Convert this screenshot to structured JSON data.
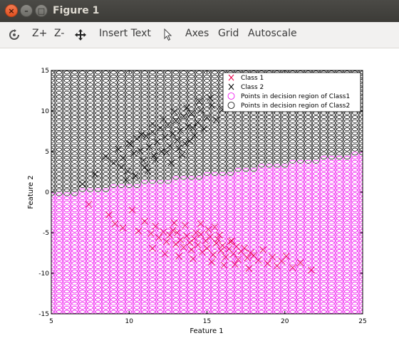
{
  "window": {
    "title": "Figure 1",
    "close_glyph": "×",
    "minimize_glyph": "–",
    "maximize_glyph": "□"
  },
  "toolbar": {
    "rotate_icon": "rotate-icon",
    "zoom_in_label": "Z+",
    "zoom_out_label": "Z-",
    "pan_icon": "pan-arrows-icon",
    "insert_text_label": "Insert Text",
    "select_icon": "pointer-icon",
    "axes_label": "Axes",
    "grid_label": "Grid",
    "autoscale_label": "Autoscale"
  },
  "chart_data": {
    "type": "scatter",
    "xlabel": "Feature 1",
    "ylabel": "Feature 2",
    "xlim": [
      5,
      25
    ],
    "ylim": [
      -15,
      15
    ],
    "xticks": [
      "5",
      "10",
      "15",
      "20",
      "25"
    ],
    "yticks": [
      "-15",
      "-10",
      "-5",
      "0",
      "5",
      "10",
      "15"
    ],
    "legend_position": "top-right",
    "grid": false,
    "decision_boundary": {
      "x": [
        5,
        25
      ],
      "y": [
        -0.5,
        4.7
      ]
    },
    "decision_grid_step": 0.5,
    "series": [
      {
        "name": "Class 1",
        "marker": "x",
        "color": "#e8004a",
        "x": [
          7.4,
          8.7,
          9.1,
          9.6,
          10.2,
          10.6,
          11.0,
          11.4,
          11.7,
          11.9,
          12.2,
          12.4,
          12.6,
          12.8,
          13.0,
          13.1,
          13.3,
          13.5,
          13.7,
          13.9,
          14.0,
          14.2,
          14.4,
          14.6,
          14.7,
          14.9,
          15.0,
          15.2,
          15.4,
          15.6,
          15.7,
          15.9,
          16.0,
          16.2,
          16.4,
          16.5,
          16.7,
          16.9,
          17.0,
          17.2,
          17.4,
          17.6,
          17.8,
          18.0,
          18.3,
          18.6,
          18.9,
          19.2,
          19.5,
          19.8,
          20.1,
          20.5,
          21.0,
          21.7,
          12.9,
          13.6,
          14.3,
          15.1,
          15.8,
          16.6,
          11.5,
          12.3,
          13.2,
          14.1,
          15.3,
          16.1,
          16.8,
          17.7,
          14.6,
          15.5
        ],
        "y": [
          -1.5,
          -2.8,
          -3.9,
          -4.4,
          -2.2,
          -4.8,
          -3.6,
          -5.1,
          -4.2,
          -5.6,
          -4.9,
          -6.1,
          -5.3,
          -4.7,
          -6.4,
          -5.0,
          -5.9,
          -6.8,
          -5.4,
          -6.2,
          -7.1,
          -5.7,
          -6.5,
          -5.2,
          -7.4,
          -6.0,
          -6.9,
          -5.5,
          -7.7,
          -6.3,
          -5.8,
          -7.2,
          -6.6,
          -8.0,
          -7.0,
          -6.1,
          -7.6,
          -6.7,
          -8.3,
          -7.3,
          -6.9,
          -8.1,
          -7.5,
          -7.8,
          -8.4,
          -7.1,
          -8.8,
          -8.0,
          -9.1,
          -8.5,
          -7.9,
          -9.3,
          -8.7,
          -9.6,
          -3.8,
          -4.1,
          -5.0,
          -4.6,
          -5.3,
          -6.0,
          -6.9,
          -7.6,
          -7.9,
          -8.2,
          -8.6,
          -9.0,
          -8.9,
          -9.4,
          -3.9,
          -4.3
        ]
      },
      {
        "name": "Class 2",
        "marker": "x",
        "color": "#000000",
        "x": [
          7.0,
          7.8,
          8.5,
          9.0,
          9.3,
          9.6,
          9.9,
          10.1,
          10.3,
          10.5,
          10.7,
          10.9,
          11.1,
          11.3,
          11.5,
          11.6,
          11.8,
          12.0,
          12.1,
          12.3,
          12.5,
          12.6,
          12.8,
          13.0,
          13.1,
          13.3,
          13.5,
          13.6,
          13.8,
          14.0,
          14.2,
          14.4,
          14.6,
          14.8,
          15.0,
          15.3,
          15.6,
          16.0,
          16.5,
          17.0,
          10.4,
          11.0,
          11.7,
          12.4,
          13.2,
          13.9,
          10.0,
          10.8,
          11.5,
          12.2,
          12.9,
          13.7,
          14.5,
          15.2,
          9.5,
          11.2,
          12.7,
          14.1,
          9.8,
          13.4
        ],
        "y": [
          1.0,
          2.2,
          4.4,
          3.6,
          5.3,
          4.2,
          2.6,
          5.9,
          4.8,
          6.6,
          5.1,
          3.9,
          6.9,
          5.6,
          7.4,
          4.5,
          6.2,
          7.9,
          5.0,
          6.8,
          8.3,
          5.7,
          7.2,
          8.8,
          6.4,
          7.6,
          9.3,
          6.0,
          8.1,
          9.7,
          7.0,
          8.6,
          10.1,
          7.8,
          9.2,
          10.7,
          8.9,
          10.2,
          11.0,
          12.0,
          2.0,
          3.1,
          4.0,
          4.9,
          5.4,
          6.3,
          6.0,
          7.1,
          8.4,
          9.0,
          9.9,
          10.4,
          11.2,
          11.6,
          3.1,
          2.6,
          3.6,
          7.9,
          1.5,
          4.6
        ]
      }
    ],
    "region_series": [
      {
        "name": "Points in decision region of Class1",
        "marker": "o",
        "color": "#ee00ee"
      },
      {
        "name": "Points in decision region of Class2",
        "marker": "o",
        "color": "#000000"
      }
    ]
  }
}
